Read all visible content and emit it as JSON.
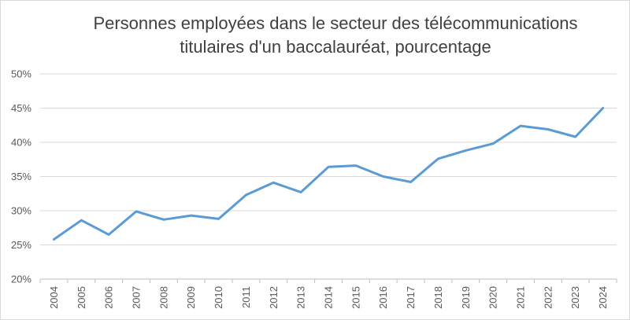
{
  "chart_data": {
    "type": "line",
    "title_lines": [
      "Personnes employées dans le secteur des télécommunications",
      "titulaires d'un baccalauréat, pourcentage"
    ],
    "xlabel": "",
    "ylabel": "",
    "categories": [
      "2004",
      "2005",
      "2006",
      "2007",
      "2008",
      "2009",
      "2010",
      "2011",
      "2012",
      "2013",
      "2014",
      "2015",
      "2016",
      "2017",
      "2018",
      "2019",
      "2020",
      "2021",
      "2022",
      "2023",
      "2024"
    ],
    "series": [
      {
        "values": [
          25.8,
          28.6,
          26.5,
          29.9,
          28.7,
          29.3,
          28.8,
          32.3,
          34.1,
          32.7,
          36.4,
          36.6,
          35.0,
          34.2,
          37.6,
          38.8,
          39.8,
          42.4,
          41.9,
          40.8,
          45.0
        ],
        "color": "#5b9bd5"
      }
    ],
    "y_ticks": [
      "20%",
      "25%",
      "30%",
      "35%",
      "40%",
      "45%",
      "50%"
    ],
    "ylim": [
      20,
      50
    ],
    "y_step": 5,
    "grid": "horizontal",
    "legend": "none"
  }
}
